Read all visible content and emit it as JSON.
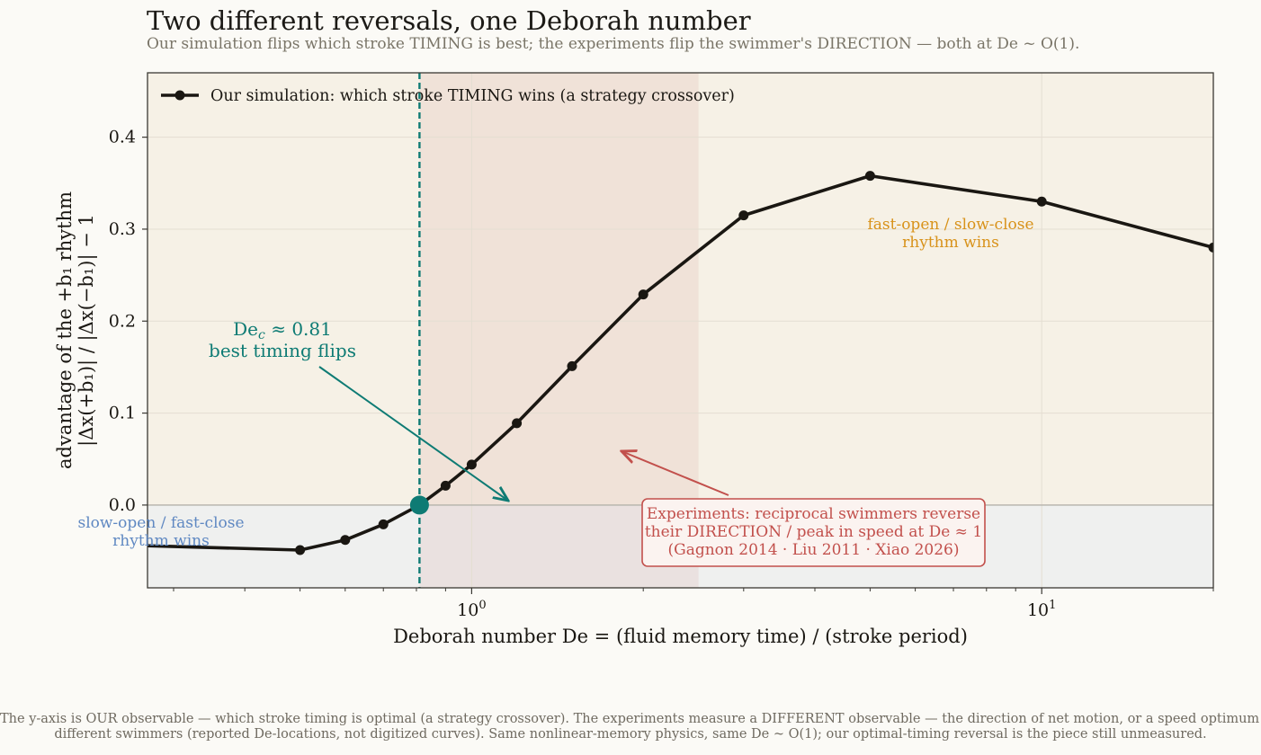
{
  "title": "Two different reversals, one Deborah number",
  "subtitle": "Our simulation flips which stroke TIMING is best; the experiments flip the swimmer's DIRECTION — both at De ~ O(1).",
  "footnote": [
    "The y-axis is OUR observable — which stroke timing is optimal (a strategy crossover). The experiments measure a DIFFERENT observable — the direction of net motion, or a speed optimum — for",
    "different swimmers (reported De-locations, not digitized curves). Same nonlinear-memory physics, same De ~ O(1); our optimal-timing reversal is the piece still unmeasured."
  ],
  "colors": {
    "series": "#1a1712",
    "critical": "#0e7b74",
    "experiment": "#c2504c",
    "positive_region": "#d8921a",
    "negative_region": "#5f88c2",
    "plot_bg": "#f6f1e6",
    "negative_bg": "#eff0ef",
    "experiment_band": "#f1e4dc"
  },
  "chart_data": {
    "type": "line",
    "xscale": "log",
    "xlim": [
      0.27,
      20
    ],
    "ylim": [
      -0.09,
      0.47
    ],
    "xticks": [
      {
        "value": 1,
        "label": "10",
        "exp": "0"
      },
      {
        "value": 10,
        "label": "10",
        "exp": "1"
      }
    ],
    "yticks": [
      {
        "value": 0.0,
        "label": "0.0"
      },
      {
        "value": 0.1,
        "label": "0.1"
      },
      {
        "value": 0.2,
        "label": "0.2"
      },
      {
        "value": 0.3,
        "label": "0.3"
      },
      {
        "value": 0.4,
        "label": "0.4"
      }
    ],
    "xlabel": "Deborah number   De  =  (fluid memory time) / (stroke period)",
    "ylabel_line1": "advantage of the +b₁ rhythm",
    "ylabel_line2": "|Δx(+b₁)| / |Δx(−b₁)|  −  1",
    "grid": true,
    "legend_position": "top-left",
    "series": [
      {
        "name": "Our simulation: which stroke TIMING wins (a strategy crossover)",
        "x": [
          0.2,
          0.5,
          0.6,
          0.7,
          0.81,
          0.9,
          1.0,
          1.2,
          1.5,
          2.0,
          3.0,
          5.0,
          10.0,
          20.0
        ],
        "y": [
          -0.042,
          -0.049,
          -0.038,
          -0.021,
          0.0,
          0.021,
          0.044,
          0.089,
          0.151,
          0.229,
          0.315,
          0.358,
          0.33,
          0.28
        ]
      }
    ],
    "critical": {
      "x": 0.81,
      "y": 0.0,
      "label_prefix": "De",
      "label_sub": "c",
      "label_suffix": " ≈ 0.81",
      "label_line2": "best timing flips"
    },
    "experiment_band": {
      "x_from": 0.81,
      "x_to": 2.5
    },
    "annotations": {
      "upper_region": [
        "fast-open / slow-close",
        "rhythm wins"
      ],
      "lower_region": [
        "slow-open / fast-close",
        "rhythm wins"
      ],
      "experiments": [
        "Experiments: reciprocal swimmers reverse",
        "their DIRECTION / peak in speed at De ≈ 1",
        "(Gagnon 2014 · Liu 2011 · Xiao 2026)"
      ]
    }
  }
}
